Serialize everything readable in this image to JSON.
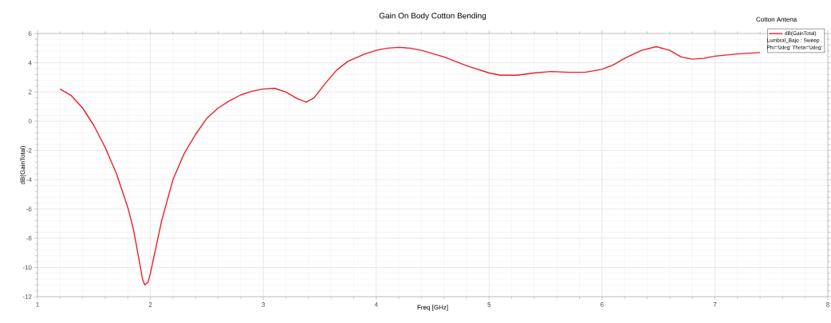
{
  "chart_data": {
    "type": "line",
    "title": "Gain On Body Cotton Bending",
    "xlabel": "Freq [GHz]",
    "ylabel": "dB(GainTotal)",
    "annotations": [
      "Cotton Antena",
      "Lumbral_Bajo : Sweep",
      "Phi='0deg' Theta='0deg'"
    ],
    "series": [
      {
        "name": "dB(GainTotal)",
        "color": "#ee1c25",
        "x": [
          1.2,
          1.3,
          1.4,
          1.5,
          1.6,
          1.7,
          1.8,
          1.85,
          1.9,
          1.93,
          1.95,
          1.98,
          2.0,
          2.05,
          2.1,
          2.2,
          2.3,
          2.4,
          2.5,
          2.6,
          2.7,
          2.8,
          2.9,
          3.0,
          3.1,
          3.2,
          3.3,
          3.38,
          3.45,
          3.55,
          3.65,
          3.75,
          3.9,
          4.0,
          4.1,
          4.2,
          4.3,
          4.4,
          4.6,
          4.8,
          5.0,
          5.1,
          5.25,
          5.4,
          5.55,
          5.7,
          5.85,
          6.0,
          6.1,
          6.2,
          6.35,
          6.48,
          6.6,
          6.7,
          6.8,
          6.9,
          7.0,
          7.2,
          7.4
        ],
        "values": [
          2.2,
          1.75,
          0.9,
          -0.3,
          -1.8,
          -3.6,
          -5.9,
          -7.4,
          -9.5,
          -10.8,
          -11.2,
          -11.0,
          -10.4,
          -8.6,
          -6.8,
          -4.0,
          -2.2,
          -0.9,
          0.2,
          0.9,
          1.4,
          1.8,
          2.05,
          2.2,
          2.25,
          2.0,
          1.55,
          1.3,
          1.6,
          2.6,
          3.5,
          4.1,
          4.6,
          4.85,
          5.0,
          5.05,
          5.0,
          4.85,
          4.4,
          3.8,
          3.3,
          3.15,
          3.15,
          3.3,
          3.4,
          3.35,
          3.35,
          3.55,
          3.85,
          4.3,
          4.85,
          5.1,
          4.85,
          4.4,
          4.25,
          4.3,
          4.45,
          4.6,
          4.7
        ]
      }
    ],
    "xlim": [
      1,
      8
    ],
    "ylim": [
      -12,
      6
    ],
    "xticks": [
      1,
      2,
      3,
      4,
      5,
      6,
      7,
      8
    ],
    "yticks": [
      -12,
      -10,
      -8,
      -6,
      -4,
      -2,
      0,
      2,
      4,
      6
    ],
    "grid": true,
    "legend": "top right",
    "marker": "none",
    "line_style": "solid"
  }
}
